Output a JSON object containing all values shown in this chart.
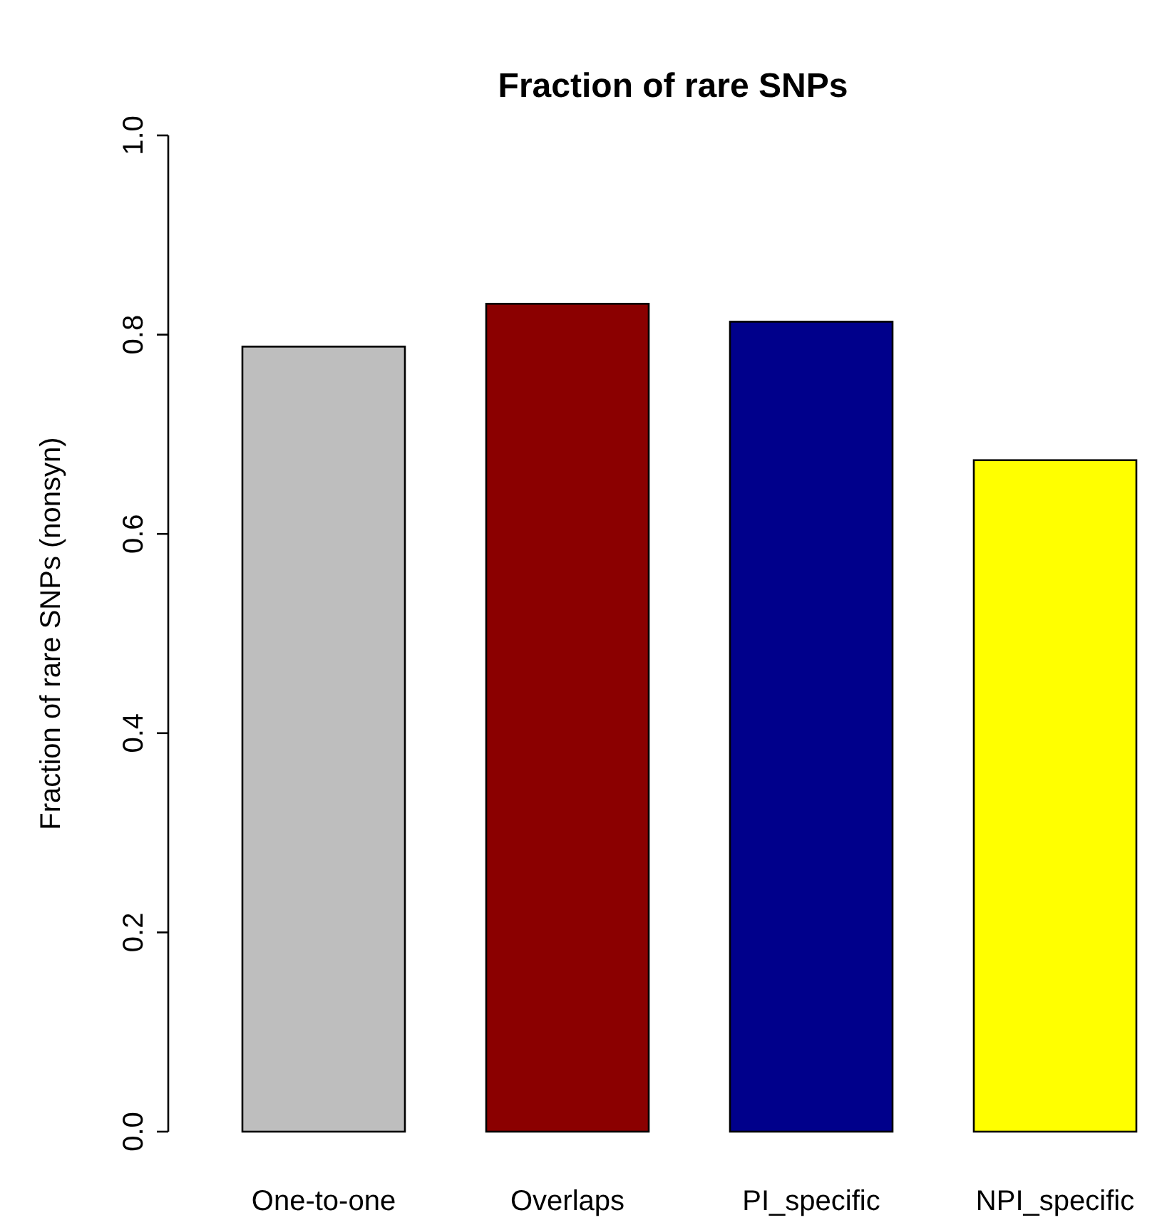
{
  "chart_data": {
    "type": "bar",
    "title": "Fraction of rare SNPs",
    "ylabel": "Fraction of rare SNPs (nonsyn)",
    "categories": [
      "One-to-one",
      "Overlaps",
      "PI_specific",
      "NPI_specific"
    ],
    "values": [
      0.788,
      0.831,
      0.813,
      0.674
    ],
    "colors": [
      "#bebebe",
      "#8b0000",
      "#00008b",
      "#ffff00"
    ],
    "ylim": [
      0,
      1
    ],
    "yticks": [
      {
        "value": 0,
        "label": "0.0"
      },
      {
        "value": 0.2,
        "label": "0.2"
      },
      {
        "value": 0.4,
        "label": "0.4"
      },
      {
        "value": 0.6,
        "label": "0.6"
      },
      {
        "value": 0.8,
        "label": "0.8"
      },
      {
        "value": 1,
        "label": "1.0"
      }
    ],
    "grid": false
  }
}
